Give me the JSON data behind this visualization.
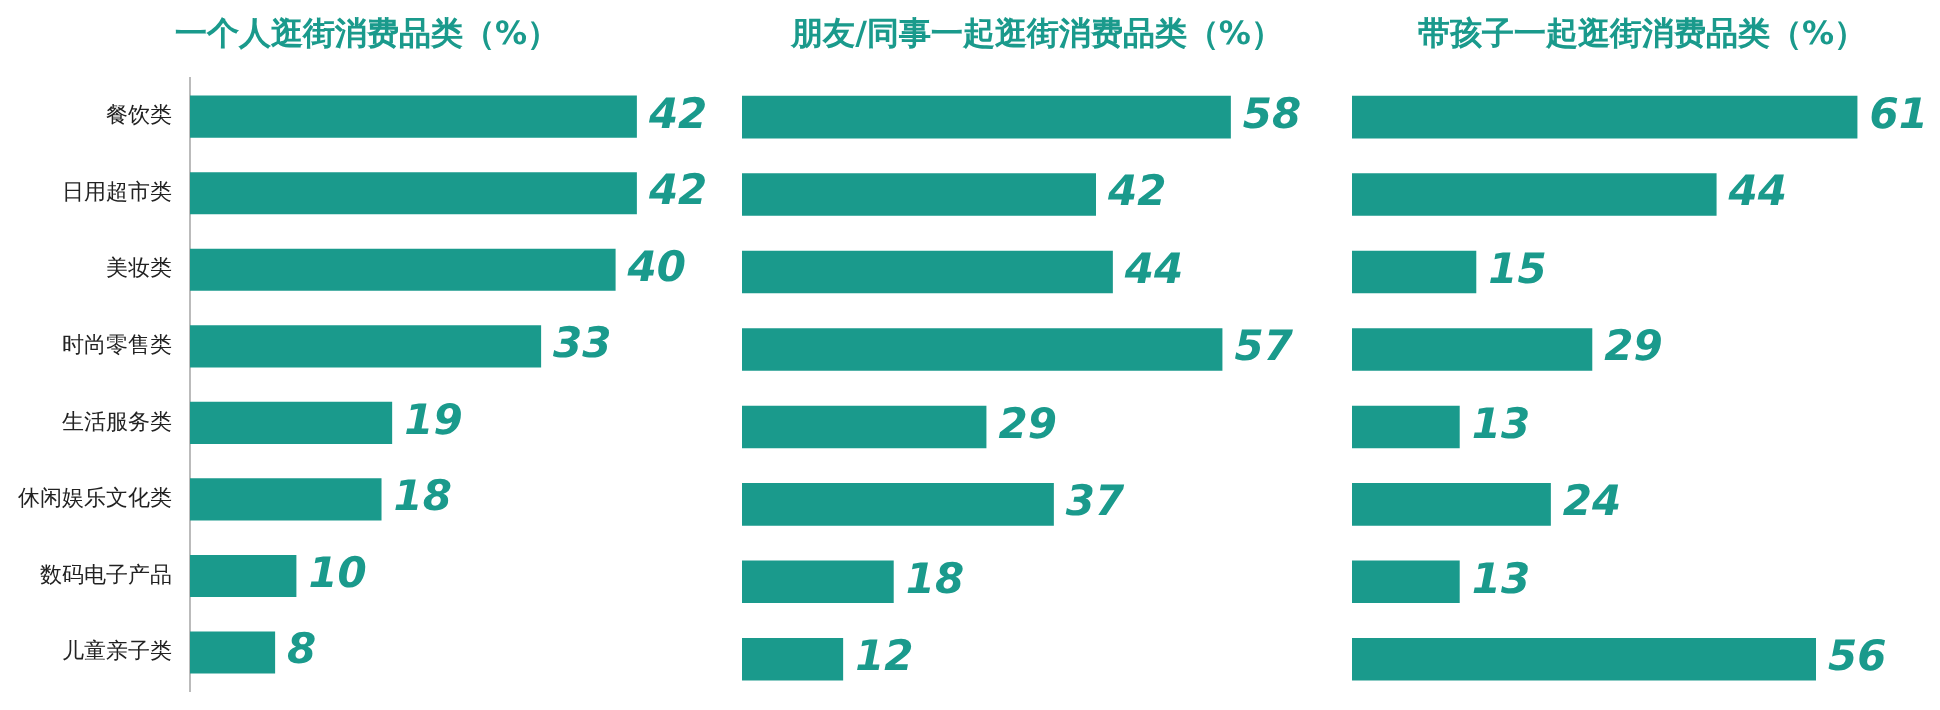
{
  "chart_data": [
    {
      "type": "bar",
      "orientation": "horizontal",
      "title": "一个人逛街消费品类（%）",
      "categories": [
        "餐饮类",
        "日用超市类",
        "美妆类",
        "时尚零售类",
        "生活服务类",
        "休闲娱乐文化类",
        "数码电子产品",
        "儿童亲子类"
      ],
      "values": [
        42,
        42,
        40,
        33,
        19,
        18,
        10,
        8
      ],
      "color": "#1a9a8c",
      "data_labels": true,
      "tick_labels": "y"
    },
    {
      "type": "bar",
      "orientation": "horizontal",
      "title": "朋友/同事一起逛街消费品类（%）",
      "categories": [
        null,
        null,
        null,
        null,
        null,
        null,
        null,
        null
      ],
      "values": [
        58,
        42,
        44,
        57,
        29,
        37,
        18,
        12
      ],
      "color": "#1a9a8c",
      "data_labels": true,
      "tick_labels": false
    },
    {
      "type": "bar",
      "orientation": "horizontal",
      "title": "带孩子一起逛街消费品类（%）",
      "categories": [
        null,
        null,
        null,
        null,
        null,
        null,
        null,
        null
      ],
      "values": [
        61,
        44,
        15,
        29,
        13,
        24,
        13,
        56
      ],
      "color": "#1a9a8c",
      "data_labels": true,
      "tick_labels": false
    }
  ]
}
